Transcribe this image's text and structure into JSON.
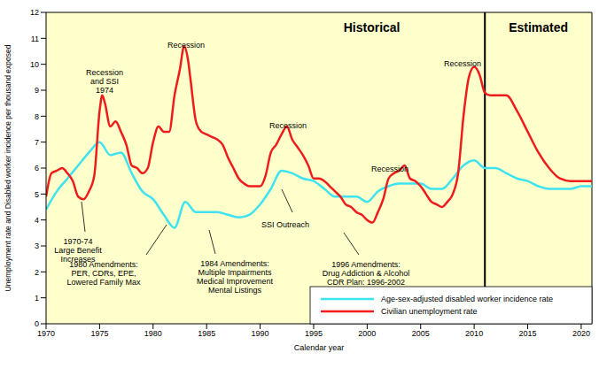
{
  "chart_data": {
    "type": "line",
    "x_label": "Calendar year",
    "y_label": "Unemployment rate and Disabled worker incidence per thousand exposed",
    "xlim": [
      1970,
      2021
    ],
    "xticks": [
      1970,
      1975,
      1980,
      1985,
      1990,
      1995,
      2000,
      2005,
      2010,
      2015,
      2020
    ],
    "ylim": [
      0,
      12
    ],
    "yticks": [
      0,
      1,
      2,
      3,
      4,
      5,
      6,
      7,
      8,
      9,
      10,
      11,
      12
    ],
    "grid": false,
    "legend": "lower right",
    "estimate_start": 2011,
    "region_labels": [
      "Historical",
      "Estimated"
    ],
    "annotations": [
      "Recession\nand SSI\n1974",
      "1970-74\nLarge Benefit\nIncreases",
      "Recession",
      "1980 Amendments:\nPER, CDRs, EPE,\nLowered Family Max",
      "1984 Amendments:\nMultiple Impairments\nMedical Improvement\nMental Listings",
      "Recession",
      "SSI Outreach",
      "1996 Amendments:\nDrug Addiction & Alcohol\nCDR Plan: 1996-2002",
      "Recession",
      "Recession"
    ],
    "series": [
      {
        "name": "Age-sex-adjusted disabled worker incidence rate",
        "color": "#3fe3ef",
        "x": [
          1970,
          1971,
          1972,
          1973,
          1974,
          1975,
          1976,
          1977,
          1978,
          1979,
          1980,
          1981,
          1982,
          1983,
          1984,
          1985,
          1986,
          1987,
          1988,
          1989,
          1990,
          1991,
          1992,
          1993,
          1994,
          1995,
          1996,
          1997,
          1998,
          1999,
          2000,
          2001,
          2002,
          2003,
          2004,
          2005,
          2006,
          2007,
          2008,
          2009,
          2010,
          2011,
          2012,
          2013,
          2014,
          2015,
          2016,
          2017,
          2018,
          2019,
          2020,
          2021
        ],
        "values": [
          4.4,
          5.1,
          5.6,
          6.1,
          6.6,
          7.0,
          6.5,
          6.6,
          5.8,
          5.1,
          4.8,
          4.2,
          3.7,
          4.7,
          4.3,
          4.3,
          4.3,
          4.2,
          4.1,
          4.2,
          4.6,
          5.2,
          5.9,
          5.8,
          5.6,
          5.5,
          5.2,
          4.9,
          4.9,
          4.9,
          4.7,
          5.1,
          5.3,
          5.4,
          5.4,
          5.4,
          5.2,
          5.2,
          5.6,
          6.1,
          6.3,
          6.0,
          6.0,
          5.8,
          5.6,
          5.5,
          5.3,
          5.2,
          5.2,
          5.2,
          5.3,
          5.3
        ]
      },
      {
        "name": "Civilian unemployment rate",
        "color": "#ee1c1c",
        "x": [
          1970,
          1970.5,
          1971,
          1971.5,
          1972,
          1972.5,
          1973,
          1973.5,
          1974,
          1974.5,
          1975,
          1975.25,
          1975.5,
          1976,
          1976.5,
          1977,
          1977.5,
          1978,
          1978.5,
          1979,
          1979.5,
          1980,
          1980.5,
          1981,
          1981.5,
          1982,
          1982.5,
          1982.9,
          1983.25,
          1983.5,
          1984,
          1984.5,
          1985,
          1985.5,
          1986,
          1986.5,
          1987,
          1987.5,
          1988,
          1988.5,
          1989,
          1989.5,
          1990,
          1990.5,
          1991,
          1991.5,
          1992,
          1992.5,
          1993,
          1993.5,
          1994,
          1994.5,
          1995,
          1995.5,
          1996,
          1996.5,
          1997,
          1997.5,
          1998,
          1998.5,
          1999,
          1999.5,
          2000,
          2000.5,
          2001,
          2001.5,
          2002,
          2002.5,
          2003,
          2003.5,
          2004,
          2004.5,
          2005,
          2005.5,
          2006,
          2006.5,
          2007,
          2007.5,
          2008,
          2008.5,
          2009,
          2009.5,
          2010,
          2010.5,
          2011,
          2011.5,
          2012,
          2013,
          2014,
          2015,
          2016,
          2017,
          2018,
          2019,
          2020,
          2021
        ],
        "values": [
          4.9,
          5.8,
          5.9,
          6.0,
          5.8,
          5.5,
          4.9,
          4.8,
          5.1,
          5.7,
          8.2,
          8.8,
          8.5,
          7.6,
          7.8,
          7.4,
          6.9,
          6.1,
          6.0,
          5.8,
          6.0,
          7.0,
          7.6,
          7.4,
          7.4,
          8.8,
          9.8,
          10.7,
          10.2,
          9.4,
          7.8,
          7.4,
          7.3,
          7.2,
          7.1,
          6.9,
          6.4,
          6.0,
          5.6,
          5.4,
          5.3,
          5.3,
          5.3,
          5.7,
          6.6,
          6.9,
          7.3,
          7.6,
          7.1,
          6.8,
          6.5,
          6.1,
          5.6,
          5.6,
          5.5,
          5.3,
          5.1,
          4.9,
          4.6,
          4.5,
          4.3,
          4.2,
          4.0,
          3.9,
          4.3,
          4.8,
          5.6,
          5.8,
          5.9,
          6.1,
          5.6,
          5.5,
          5.3,
          5.0,
          4.7,
          4.6,
          4.5,
          4.7,
          5.0,
          5.8,
          8.0,
          9.5,
          9.9,
          9.6,
          8.9,
          8.8,
          8.8,
          8.8,
          8.2,
          7.4,
          6.6,
          6.0,
          5.6,
          5.5,
          5.5,
          5.5
        ]
      }
    ]
  }
}
